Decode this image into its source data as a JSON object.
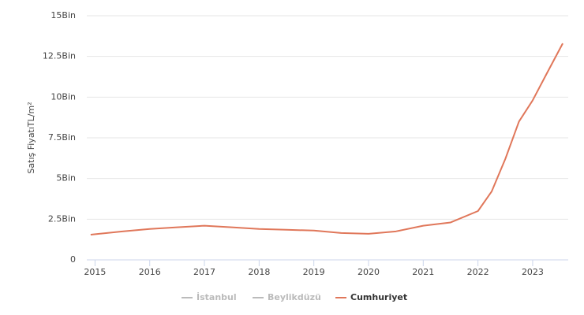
{
  "chart_data": {
    "type": "line",
    "y_label": "Satış FiyatıTL/m²",
    "x": [
      2014.92,
      2015.5,
      2016,
      2016.5,
      2017,
      2017.5,
      2018,
      2018.5,
      2019,
      2019.5,
      2020,
      2020.5,
      2021,
      2021.5,
      2022,
      2022.25,
      2022.5,
      2022.75,
      2023,
      2023.25,
      2023.55
    ],
    "series": [
      {
        "name": "İstanbul",
        "color": "#bbbbbb",
        "values": [
          null,
          null,
          null,
          null,
          null,
          null,
          null,
          null,
          null,
          null,
          null,
          null,
          null,
          null,
          null,
          null,
          null,
          null,
          null,
          null,
          null
        ]
      },
      {
        "name": "Beylikdüzü",
        "color": "#bbbbbb",
        "values": [
          null,
          null,
          null,
          null,
          null,
          null,
          null,
          null,
          null,
          null,
          null,
          null,
          null,
          null,
          null,
          null,
          null,
          null,
          null,
          null,
          null
        ]
      },
      {
        "name": "Cumhuriyet",
        "color": "#e0775a",
        "values": [
          1550,
          1750,
          1900,
          2000,
          2100,
          2000,
          1900,
          1850,
          1800,
          1650,
          1600,
          1750,
          2100,
          2300,
          3000,
          4200,
          6200,
          8500,
          9800,
          11400,
          13300
        ]
      }
    ],
    "xlim": [
      2014.85,
      2023.65
    ],
    "xticks": [
      2015,
      2016,
      2017,
      2018,
      2019,
      2020,
      2021,
      2022,
      2023
    ],
    "ylim": [
      0,
      15000
    ],
    "yticks": [
      0,
      {
        "value": 2500,
        "label": "2.5Bin"
      },
      {
        "value": 5000,
        "label": "5Bin"
      },
      {
        "value": 7500,
        "label": "7.5Bin"
      },
      {
        "value": 10000,
        "label": "10Bin"
      },
      {
        "value": 12500,
        "label": "12.5Bin"
      },
      {
        "value": 15000,
        "label": "15Bin"
      }
    ],
    "grid": true
  }
}
